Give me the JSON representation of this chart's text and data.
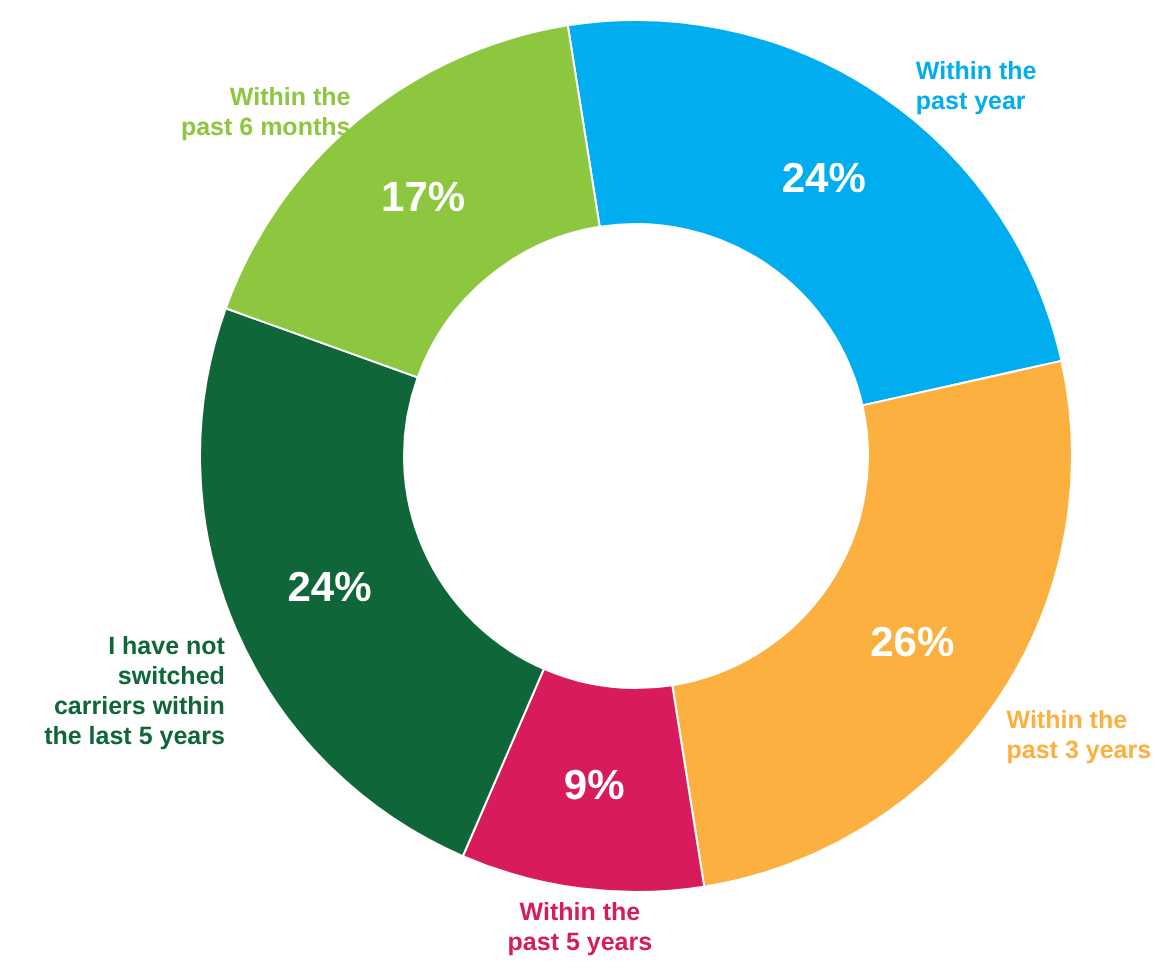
{
  "chart_data": {
    "type": "donut",
    "categories": [
      "Within the past year",
      "Within the past 3 years",
      "Within the past 5 years",
      "I have not switched carriers within the last 5 years",
      "Within the past 6 months"
    ],
    "values": [
      24,
      26,
      9,
      24,
      17
    ],
    "colors": [
      "#00aeef",
      "#fbb040",
      "#d81b5c",
      "#0f6638",
      "#8dc63f"
    ],
    "value_labels": [
      "24%",
      "26%",
      "9%",
      "24%",
      "17%"
    ]
  }
}
